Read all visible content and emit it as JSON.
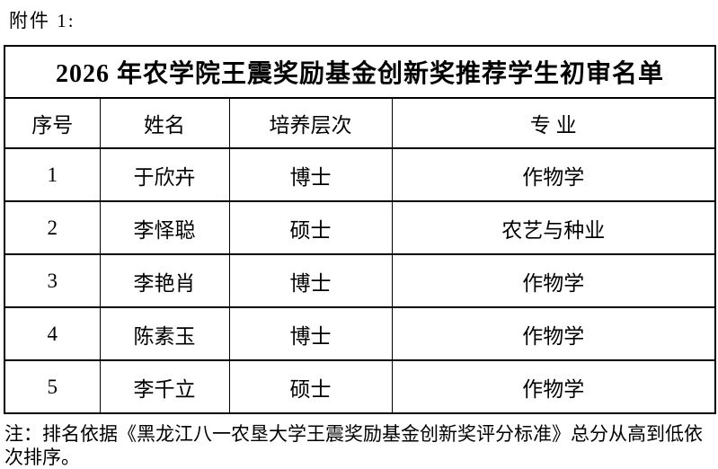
{
  "page": {
    "attachment_label": "附件 1:"
  },
  "table": {
    "title": "2026 年农学院王震奖励基金创新奖推荐学生初审名单",
    "columns": {
      "no": "序号",
      "name": "姓名",
      "level": "培养层次",
      "major": "专 业"
    },
    "rows": [
      {
        "no": "1",
        "name": "于欣卉",
        "level": "博士",
        "major": "作物学"
      },
      {
        "no": "2",
        "name": "李怿聪",
        "level": "硕士",
        "major": "农艺与种业"
      },
      {
        "no": "3",
        "name": "李艳肖",
        "level": "博士",
        "major": "作物学"
      },
      {
        "no": "4",
        "name": "陈素玉",
        "level": "博士",
        "major": "作物学"
      },
      {
        "no": "5",
        "name": "李千立",
        "level": "硕士",
        "major": "作物学"
      }
    ]
  },
  "note": "注：排名依据《黑龙江八一农垦大学王震奖励基金创新奖评分标准》总分从高到低依次排序。",
  "colors": {
    "text": "#000000",
    "border": "#000000",
    "background": "#ffffff"
  }
}
